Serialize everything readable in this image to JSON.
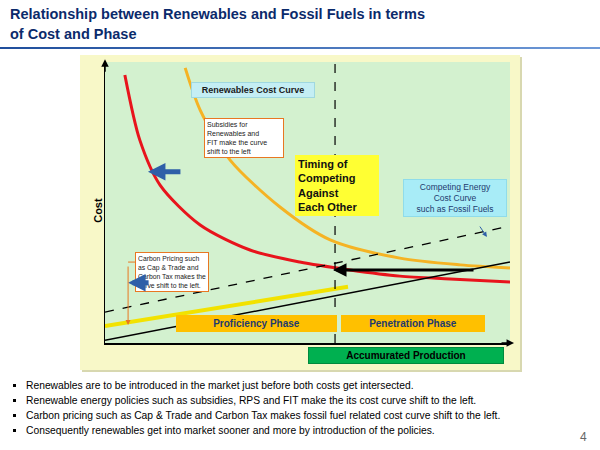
{
  "title_lines": [
    "Relationship between Renewables and Fossil Fuels in terms",
    "of Cost and Phase"
  ],
  "bullets": [
    "Renewables are to be introduced in the market just before both costs get intersected.",
    "Renewable energy policies such as subsidies, RPS and FIT make the its cost curve shift to the left.",
    "Carbon pricing such as Cap & Trade and Carbon Tax makes fossil fuel related cost curve shift to the left.",
    "Consequently renewables get into market sooner and more by introduction of the policies."
  ],
  "page_number": 4,
  "chart_data": {
    "type": "line",
    "x_label": "Accumurated Production",
    "y_label": "Cost",
    "xlim": [
      0,
      100
    ],
    "ylim": [
      0,
      100
    ],
    "xticks": [],
    "yticks": [],
    "grid": false,
    "tick_labels": false,
    "series": [
      {
        "color": "#f5b324",
        "line_style": "solid",
        "x": [
          19.8,
          23.5,
          30.9,
          43.2,
          55.6,
          72.8,
          87.7,
          100
        ],
        "values": [
          97.9,
          82.9,
          65.1,
          48.4,
          36.7,
          30.2,
          27.8,
          26.7
        ]
      },
      {
        "color": "#e8141c",
        "line_style": "solid",
        "x": [
          4.9,
          8.6,
          13.6,
          23.5,
          35.8,
          48.1,
          60.5,
          72.8,
          85.2,
          100
        ],
        "values": [
          95.4,
          72.2,
          56.2,
          42,
          33.1,
          28.8,
          26,
          23.8,
          22.8,
          21.7
        ]
      },
      {
        "color": "#000000",
        "line_style": "dashed",
        "x": [
          0,
          100
        ],
        "values": [
          11,
          41.6
        ]
      },
      {
        "color": "#000000",
        "line_style": "solid",
        "x": [
          0,
          100
        ],
        "values": [
          1,
          28.8
        ]
      },
      {
        "color": "#f2e200",
        "line_style": "solid",
        "x": [
          0,
          60
        ],
        "values": [
          6,
          20
        ]
      },
      {
        "color": "#000000",
        "line_style": "dashed",
        "x": [
          56.8,
          56.8
        ],
        "values": [
          0,
          100
        ]
      }
    ],
    "annotations": [
      {
        "text": [
          "Renewables Cost Curve"
        ]
      },
      {
        "text": [
          "Subsidies for",
          "Renewables and",
          "FIT make the curve",
          "shift to the left"
        ]
      },
      {
        "text": [
          "Timing of",
          "Competing",
          "Against",
          "Each Other"
        ]
      },
      {
        "text": [
          "Competing Energy",
          "Cost Curve",
          "such as Fossil Fuels"
        ]
      },
      {
        "text": [
          "Carbon Pricing such",
          "as Cap & Trade and",
          "Carbon Tax makes the",
          "curve shift to the left."
        ]
      },
      {
        "text": [
          "Proficiency Phase"
        ]
      },
      {
        "text": [
          "Penetration Phase"
        ]
      }
    ]
  }
}
